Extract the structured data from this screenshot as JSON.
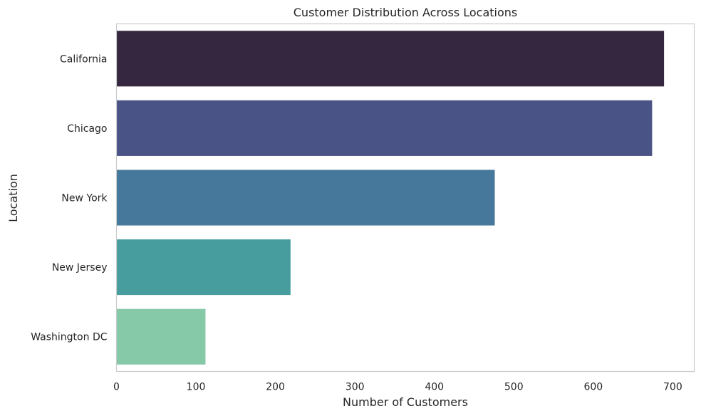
{
  "chart_data": {
    "type": "bar",
    "orientation": "horizontal",
    "title": "Customer Distribution Across Locations",
    "xlabel": "Number of Customers",
    "ylabel": "Location",
    "categories": [
      "California",
      "Chicago",
      "New York",
      "New Jersey",
      "Washington DC"
    ],
    "values": [
      689,
      674,
      476,
      219,
      112
    ],
    "colors": [
      "#35273f",
      "#4a5385",
      "#45789a",
      "#479d9d",
      "#86c9a9"
    ],
    "xlim": [
      0,
      727
    ],
    "xticks": [
      0,
      100,
      200,
      300,
      400,
      500,
      600,
      700
    ],
    "grid": false,
    "legend": "none"
  }
}
